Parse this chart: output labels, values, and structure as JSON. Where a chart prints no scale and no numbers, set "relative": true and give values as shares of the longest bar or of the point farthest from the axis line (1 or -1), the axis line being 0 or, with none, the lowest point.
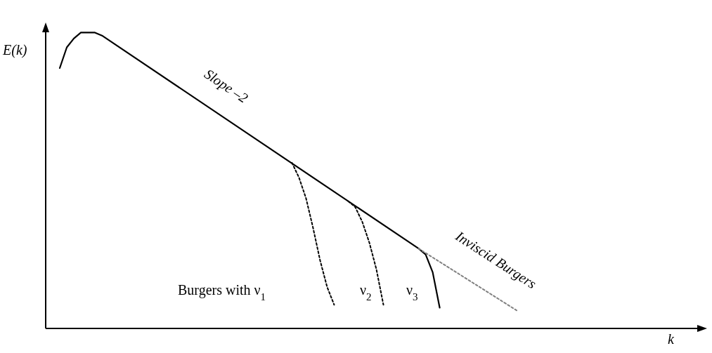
{
  "chart_data": {
    "type": "line",
    "relative": true,
    "ylabel": "E(k)",
    "annotations": [
      "Slope –2",
      "Inviscid Burgers",
      "Burgers with ν$_{1}$",
      "ν$_{2}$",
      "ν$_{3}$",
      "k"
    ],
    "categories": [
      null,
      null,
      null,
      null,
      null,
      null,
      null,
      null,
      null,
      null,
      null,
      null,
      null,
      null,
      null,
      null,
      null,
      null,
      null,
      null,
      null,
      null,
      null,
      null,
      null,
      null,
      null,
      null,
      null,
      null,
      null,
      null,
      null,
      null,
      null,
      null,
      null,
      null,
      null,
      null,
      null,
      null,
      null,
      null,
      null,
      null,
      null,
      null,
      null,
      null,
      null,
      null,
      null,
      null,
      null,
      null,
      null,
      null,
      null,
      null,
      null,
      null,
      null,
      null,
      null,
      null
    ],
    "series": [
      {
        "color": "#000000",
        "line_style": "solid",
        "values": [
          0.88,
          0.95,
          0.98,
          1.0,
          1.0,
          1.0,
          0.99,
          null,
          null,
          null,
          null,
          null,
          null,
          null,
          null,
          null,
          null,
          null,
          null,
          null,
          null,
          null,
          null,
          null,
          null,
          null,
          null,
          null,
          null,
          null,
          null,
          null,
          null,
          null,
          null,
          null,
          null,
          null,
          null,
          null,
          null,
          null,
          null,
          null,
          null,
          null,
          null,
          null,
          null,
          null,
          null,
          0.27,
          0.25,
          0.19,
          0.07,
          null,
          null,
          null,
          null,
          null,
          null,
          null,
          null,
          null,
          null,
          null
        ]
      },
      {
        "color": "#000000",
        "line_style": "dashed",
        "values": [
          null,
          null,
          null,
          null,
          null,
          null,
          null,
          null,
          null,
          null,
          null,
          null,
          null,
          null,
          null,
          null,
          null,
          null,
          null,
          null,
          null,
          null,
          null,
          null,
          null,
          null,
          null,
          null,
          null,
          null,
          null,
          null,
          null,
          0.56,
          0.51,
          0.44,
          0.34,
          0.23,
          0.14,
          0.08,
          null,
          null,
          null,
          null,
          null,
          null,
          null,
          null,
          null,
          null,
          null,
          null,
          null,
          null,
          null,
          null,
          null,
          null,
          null,
          null,
          null,
          null,
          null,
          null,
          null,
          null
        ]
      },
      {
        "color": "#000000",
        "line_style": "dashed",
        "values": [
          null,
          null,
          null,
          null,
          null,
          null,
          null,
          null,
          null,
          null,
          null,
          null,
          null,
          null,
          null,
          null,
          null,
          null,
          null,
          null,
          null,
          null,
          null,
          null,
          null,
          null,
          null,
          null,
          null,
          null,
          null,
          null,
          null,
          null,
          null,
          null,
          null,
          null,
          null,
          null,
          null,
          0.43,
          0.41,
          0.36,
          0.29,
          0.2,
          0.08,
          null,
          null,
          null,
          null,
          null,
          null,
          null,
          null,
          null,
          null,
          null,
          null,
          null,
          null,
          null,
          null,
          null,
          null,
          null
        ]
      },
      {
        "color": "#808080",
        "line_style": "dashed",
        "values": [
          null,
          null,
          null,
          null,
          null,
          null,
          null,
          null,
          null,
          null,
          null,
          null,
          null,
          null,
          null,
          null,
          null,
          null,
          null,
          null,
          null,
          null,
          null,
          null,
          null,
          null,
          null,
          null,
          null,
          null,
          null,
          null,
          null,
          null,
          null,
          null,
          null,
          null,
          null,
          null,
          null,
          null,
          null,
          null,
          null,
          null,
          null,
          null,
          null,
          null,
          null,
          0.27,
          null,
          null,
          null,
          null,
          null,
          null,
          null,
          null,
          null,
          null,
          null,
          null,
          null,
          0.06
        ]
      }
    ]
  }
}
